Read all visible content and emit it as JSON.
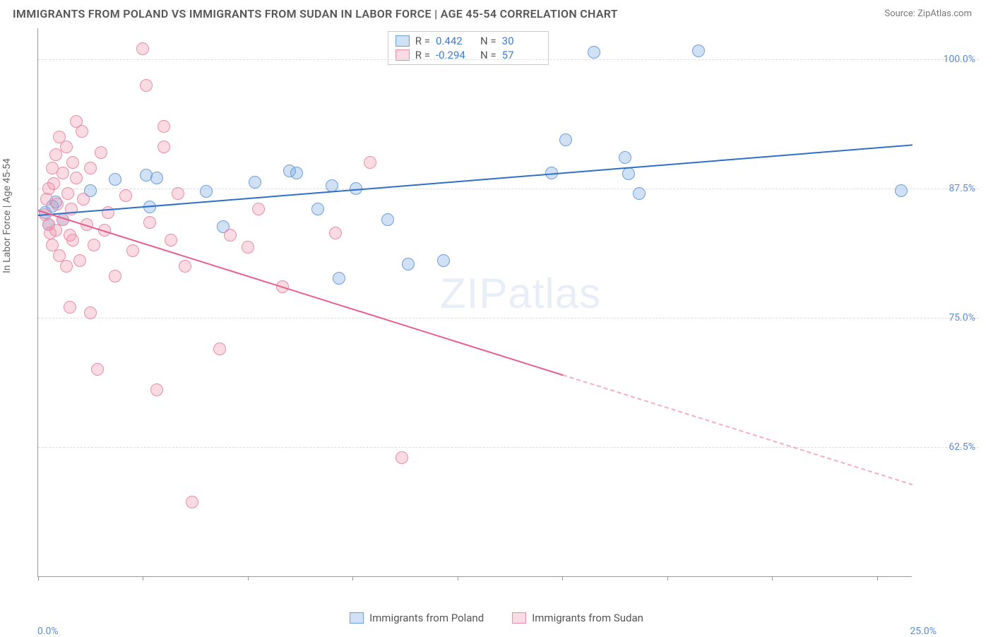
{
  "header": {
    "title": "IMMIGRANTS FROM POLAND VS IMMIGRANTS FROM SUDAN IN LABOR FORCE | AGE 45-54 CORRELATION CHART",
    "source": "Source: ZipAtlas.com"
  },
  "chart": {
    "type": "scatter",
    "y_axis_label": "In Labor Force | Age 45-54",
    "watermark": "ZIPatlas",
    "background_color": "#ffffff",
    "grid_color": "#dddddd",
    "axis_color": "#999999",
    "tick_label_color": "#5b8dd6",
    "xlim": [
      0,
      25
    ],
    "ylim": [
      50,
      103
    ],
    "x_ticks": [
      0,
      3,
      6,
      9,
      12,
      15,
      18,
      21,
      24
    ],
    "x_tick_labels": {
      "0": "0.0%",
      "25": "25.0%"
    },
    "y_ticks": [
      62.5,
      75.0,
      87.5,
      100.0
    ],
    "y_tick_labels": [
      "62.5%",
      "75.0%",
      "87.5%",
      "100.0%"
    ],
    "marker_radius": 9,
    "series": [
      {
        "name": "Immigrants from Poland",
        "color_fill": "rgba(120,165,225,0.35)",
        "color_stroke": "#6f9fd8",
        "trend_color": "#2f6fc7",
        "R": "0.442",
        "N": "30",
        "trend": {
          "x1": 0,
          "y1": 85.0,
          "x2": 25,
          "y2": 91.8,
          "solid_until_x": 25
        },
        "points": [
          [
            0.2,
            85.2
          ],
          [
            0.3,
            84.0
          ],
          [
            0.4,
            85.8
          ],
          [
            0.5,
            86.2
          ],
          [
            0.7,
            84.5
          ],
          [
            1.5,
            87.3
          ],
          [
            2.2,
            88.4
          ],
          [
            3.1,
            88.8
          ],
          [
            3.4,
            88.5
          ],
          [
            3.2,
            85.7
          ],
          [
            4.8,
            87.2
          ],
          [
            5.3,
            83.8
          ],
          [
            6.2,
            88.1
          ],
          [
            7.2,
            89.2
          ],
          [
            7.4,
            89.0
          ],
          [
            8.0,
            85.5
          ],
          [
            8.4,
            87.8
          ],
          [
            8.6,
            78.8
          ],
          [
            9.1,
            87.5
          ],
          [
            10.0,
            84.5
          ],
          [
            10.6,
            80.2
          ],
          [
            11.6,
            80.5
          ],
          [
            14.7,
            89.0
          ],
          [
            15.1,
            92.2
          ],
          [
            15.9,
            100.7
          ],
          [
            16.8,
            90.5
          ],
          [
            16.9,
            88.9
          ],
          [
            17.2,
            87.0
          ],
          [
            18.9,
            100.8
          ],
          [
            24.7,
            87.3
          ]
        ]
      },
      {
        "name": "Immigrants from Sudan",
        "color_fill": "rgba(240,150,175,0.35)",
        "color_stroke": "#e78fa8",
        "trend_color": "#e75f8c",
        "R": "-0.294",
        "N": "57",
        "trend": {
          "x1": 0,
          "y1": 85.5,
          "x2": 25,
          "y2": 59.0,
          "solid_until_x": 15
        },
        "points": [
          [
            0.2,
            85.0
          ],
          [
            0.25,
            86.5
          ],
          [
            0.3,
            84.0
          ],
          [
            0.3,
            87.5
          ],
          [
            0.35,
            83.2
          ],
          [
            0.4,
            89.5
          ],
          [
            0.4,
            82.0
          ],
          [
            0.45,
            88.0
          ],
          [
            0.5,
            90.8
          ],
          [
            0.5,
            83.5
          ],
          [
            0.55,
            86.0
          ],
          [
            0.6,
            92.5
          ],
          [
            0.6,
            81.0
          ],
          [
            0.7,
            89.0
          ],
          [
            0.7,
            84.5
          ],
          [
            0.8,
            91.5
          ],
          [
            0.8,
            80.0
          ],
          [
            0.85,
            87.0
          ],
          [
            0.9,
            83.0
          ],
          [
            0.95,
            85.5
          ],
          [
            1.0,
            90.0
          ],
          [
            1.0,
            82.5
          ],
          [
            1.1,
            88.5
          ],
          [
            1.1,
            94.0
          ],
          [
            1.2,
            80.5
          ],
          [
            1.3,
            86.5
          ],
          [
            1.4,
            84.0
          ],
          [
            1.5,
            75.5
          ],
          [
            1.5,
            89.5
          ],
          [
            1.6,
            82.0
          ],
          [
            1.7,
            70.0
          ],
          [
            1.8,
            91.0
          ],
          [
            1.9,
            83.5
          ],
          [
            2.0,
            85.2
          ],
          [
            2.2,
            79.0
          ],
          [
            2.5,
            86.8
          ],
          [
            2.7,
            81.5
          ],
          [
            3.0,
            101.0
          ],
          [
            3.1,
            97.5
          ],
          [
            3.2,
            84.2
          ],
          [
            3.4,
            68.0
          ],
          [
            3.6,
            93.5
          ],
          [
            3.6,
            91.5
          ],
          [
            3.8,
            82.5
          ],
          [
            4.0,
            87.0
          ],
          [
            4.2,
            80.0
          ],
          [
            4.4,
            57.2
          ],
          [
            5.2,
            72.0
          ],
          [
            5.5,
            83.0
          ],
          [
            6.0,
            81.8
          ],
          [
            6.3,
            85.5
          ],
          [
            7.0,
            78.0
          ],
          [
            8.5,
            83.2
          ],
          [
            9.5,
            90.0
          ],
          [
            10.4,
            61.5
          ],
          [
            1.25,
            93.0
          ],
          [
            0.9,
            76.0
          ]
        ]
      }
    ],
    "legend_top": {
      "rows": [
        {
          "swatch_fill": "rgba(120,165,225,0.35)",
          "swatch_stroke": "#6f9fd8",
          "r_label": "R =",
          "r_val": "0.442",
          "n_label": "N =",
          "n_val": "30"
        },
        {
          "swatch_fill": "rgba(240,150,175,0.35)",
          "swatch_stroke": "#e78fa8",
          "r_label": "R =",
          "r_val": "-0.294",
          "n_label": "N =",
          "n_val": "57"
        }
      ]
    },
    "legend_bottom": [
      {
        "swatch_fill": "rgba(120,165,225,0.35)",
        "swatch_stroke": "#6f9fd8",
        "label": "Immigrants from Poland"
      },
      {
        "swatch_fill": "rgba(240,150,175,0.35)",
        "swatch_stroke": "#e78fa8",
        "label": "Immigrants from Sudan"
      }
    ]
  }
}
